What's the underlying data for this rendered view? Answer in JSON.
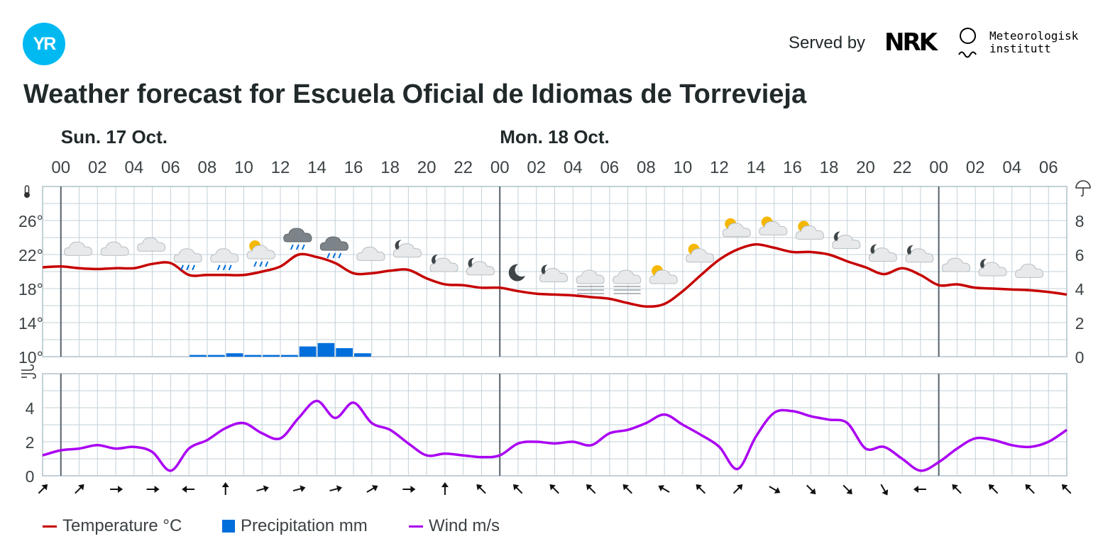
{
  "header": {
    "logo_text": "YR",
    "served_by": "Served by",
    "nrk_text": "NRK",
    "met_line1": "Meteorologisk",
    "met_line2": "institutt"
  },
  "title": "Weather forecast for Escuela Oficial de Idiomas de Torrevieja",
  "colors": {
    "temperature": "#c60000",
    "precipitation": "#006edb",
    "wind": "#aa00f2",
    "grid": "#c3d0d8",
    "day_separator": "#56616c",
    "axis_text": "#3b4245",
    "logo": "#00b9f1"
  },
  "legend": [
    {
      "label": "Temperature °C",
      "kind": "line",
      "color": "#c60000"
    },
    {
      "label": "Precipitation mm",
      "kind": "box",
      "color": "#006edb"
    },
    {
      "label": "Wind m/s",
      "kind": "line",
      "color": "#aa00f2"
    }
  ],
  "chart_data": {
    "type": "line",
    "x_unit": "hours from Sun. 17 Oct. 00:00",
    "days": [
      {
        "label": "Sun. 17 Oct.",
        "start_hour": 0
      },
      {
        "label": "Mon. 18 Oct.",
        "start_hour": 24
      }
    ],
    "hour_tick_labels": [
      "00",
      "02",
      "04",
      "06",
      "08",
      "10",
      "12",
      "14",
      "16",
      "18",
      "20",
      "22",
      "00",
      "02",
      "04",
      "06",
      "08",
      "10",
      "12",
      "14",
      "16",
      "18",
      "20",
      "22",
      "00",
      "02",
      "04",
      "06"
    ],
    "x_range": [
      -1,
      55
    ],
    "temperature": {
      "name": "Temperature °C",
      "ylim": [
        10,
        30
      ],
      "yticks": [
        "10°",
        "14°",
        "18°",
        "22°",
        "26°"
      ],
      "points": [
        [
          -1,
          20.5
        ],
        [
          0,
          20.6
        ],
        [
          1,
          20.4
        ],
        [
          2,
          20.3
        ],
        [
          3,
          20.4
        ],
        [
          4,
          20.4
        ],
        [
          5,
          20.9
        ],
        [
          6,
          21.0
        ],
        [
          7,
          19.6
        ],
        [
          8,
          19.6
        ],
        [
          9,
          19.6
        ],
        [
          10,
          19.6
        ],
        [
          11,
          20.0
        ],
        [
          12,
          20.6
        ],
        [
          13,
          22.0
        ],
        [
          14,
          21.7
        ],
        [
          15,
          21.0
        ],
        [
          16,
          19.8
        ],
        [
          17,
          19.8
        ],
        [
          18,
          20.1
        ],
        [
          19,
          20.2
        ],
        [
          20,
          19.2
        ],
        [
          21,
          18.5
        ],
        [
          22,
          18.4
        ],
        [
          23,
          18.1
        ],
        [
          24,
          18.1
        ],
        [
          25,
          17.7
        ],
        [
          26,
          17.4
        ],
        [
          27,
          17.3
        ],
        [
          28,
          17.2
        ],
        [
          29,
          17.0
        ],
        [
          30,
          16.8
        ],
        [
          31,
          16.3
        ],
        [
          32,
          15.9
        ],
        [
          33,
          16.2
        ],
        [
          34,
          17.7
        ],
        [
          35,
          19.6
        ],
        [
          36,
          21.4
        ],
        [
          37,
          22.6
        ],
        [
          38,
          23.2
        ],
        [
          39,
          22.8
        ],
        [
          40,
          22.3
        ],
        [
          41,
          22.3
        ],
        [
          42,
          22.0
        ],
        [
          43,
          21.2
        ],
        [
          44,
          20.5
        ],
        [
          45,
          19.7
        ],
        [
          46,
          20.4
        ],
        [
          47,
          19.6
        ],
        [
          48,
          18.4
        ],
        [
          49,
          18.5
        ],
        [
          50,
          18.1
        ],
        [
          51,
          18.0
        ],
        [
          52,
          17.9
        ],
        [
          53,
          17.8
        ],
        [
          54,
          17.6
        ],
        [
          55,
          17.3
        ]
      ]
    },
    "precipitation": {
      "name": "Precipitation mm",
      "ylim": [
        0,
        10
      ],
      "yticks": [
        "0",
        "2",
        "4",
        "6",
        "8"
      ],
      "bars": [
        [
          7,
          0.1
        ],
        [
          8,
          0.1
        ],
        [
          9,
          0.2
        ],
        [
          10,
          0.1
        ],
        [
          11,
          0.1
        ],
        [
          12,
          0.1
        ],
        [
          13,
          0.6
        ],
        [
          14,
          0.8
        ],
        [
          15,
          0.5
        ],
        [
          16,
          0.2
        ]
      ]
    },
    "wind": {
      "name": "Wind m/s",
      "ylim": [
        0,
        6
      ],
      "yticks": [
        "0",
        "2",
        "4"
      ],
      "points": [
        [
          -1,
          1.2
        ],
        [
          0,
          1.5
        ],
        [
          1,
          1.6
        ],
        [
          2,
          1.8
        ],
        [
          3,
          1.6
        ],
        [
          4,
          1.7
        ],
        [
          5,
          1.4
        ],
        [
          6,
          0.3
        ],
        [
          7,
          1.6
        ],
        [
          8,
          2.1
        ],
        [
          9,
          2.8
        ],
        [
          10,
          3.1
        ],
        [
          11,
          2.5
        ],
        [
          12,
          2.2
        ],
        [
          13,
          3.4
        ],
        [
          14,
          4.4
        ],
        [
          15,
          3.4
        ],
        [
          16,
          4.3
        ],
        [
          17,
          3.1
        ],
        [
          18,
          2.7
        ],
        [
          19,
          1.9
        ],
        [
          20,
          1.2
        ],
        [
          21,
          1.3
        ],
        [
          22,
          1.2
        ],
        [
          23,
          1.1
        ],
        [
          24,
          1.2
        ],
        [
          25,
          1.9
        ],
        [
          26,
          2.0
        ],
        [
          27,
          1.9
        ],
        [
          28,
          2.0
        ],
        [
          29,
          1.8
        ],
        [
          30,
          2.5
        ],
        [
          31,
          2.7
        ],
        [
          32,
          3.1
        ],
        [
          33,
          3.6
        ],
        [
          34,
          3.0
        ],
        [
          35,
          2.4
        ],
        [
          36,
          1.7
        ],
        [
          37,
          0.4
        ],
        [
          38,
          2.3
        ],
        [
          39,
          3.7
        ],
        [
          40,
          3.8
        ],
        [
          41,
          3.5
        ],
        [
          42,
          3.3
        ],
        [
          43,
          3.1
        ],
        [
          44,
          1.6
        ],
        [
          45,
          1.7
        ],
        [
          46,
          1.0
        ],
        [
          47,
          0.3
        ],
        [
          48,
          0.8
        ],
        [
          49,
          1.6
        ],
        [
          50,
          2.2
        ],
        [
          51,
          2.1
        ],
        [
          52,
          1.8
        ],
        [
          53,
          1.7
        ],
        [
          54,
          2.0
        ],
        [
          55,
          2.7
        ]
      ]
    },
    "wind_direction_arrows": [
      {
        "hour": -1,
        "rot": 225
      },
      {
        "hour": 1,
        "rot": 225
      },
      {
        "hour": 3,
        "rot": 270
      },
      {
        "hour": 5,
        "rot": 270
      },
      {
        "hour": 7,
        "rot": 90
      },
      {
        "hour": 9,
        "rot": 180
      },
      {
        "hour": 11,
        "rot": 255
      },
      {
        "hour": 13,
        "rot": 255
      },
      {
        "hour": 15,
        "rot": 255
      },
      {
        "hour": 17,
        "rot": 240
      },
      {
        "hour": 19,
        "rot": 270
      },
      {
        "hour": 21,
        "rot": 180
      },
      {
        "hour": 23,
        "rot": 135
      },
      {
        "hour": 25,
        "rot": 135
      },
      {
        "hour": 27,
        "rot": 135
      },
      {
        "hour": 29,
        "rot": 135
      },
      {
        "hour": 31,
        "rot": 135
      },
      {
        "hour": 33,
        "rot": 120
      },
      {
        "hour": 35,
        "rot": 135
      },
      {
        "hour": 37,
        "rot": 225
      },
      {
        "hour": 39,
        "rot": 300
      },
      {
        "hour": 41,
        "rot": 315
      },
      {
        "hour": 43,
        "rot": 315
      },
      {
        "hour": 45,
        "rot": 330
      },
      {
        "hour": 47,
        "rot": 90
      },
      {
        "hour": 49,
        "rot": 135
      },
      {
        "hour": 51,
        "rot": 135
      },
      {
        "hour": 53,
        "rot": 135
      },
      {
        "hour": 55,
        "rot": 135
      }
    ],
    "weather_symbols": [
      {
        "hour": 1,
        "icon": "cloudy-icon"
      },
      {
        "hour": 3,
        "icon": "cloudy-icon"
      },
      {
        "hour": 5,
        "icon": "cloudy-icon"
      },
      {
        "hour": 7,
        "icon": "rain-cloud-icon"
      },
      {
        "hour": 9,
        "icon": "rain-cloud-icon"
      },
      {
        "hour": 11,
        "icon": "sun-rain-cloud-icon"
      },
      {
        "hour": 13,
        "icon": "dark-rain-cloud-icon"
      },
      {
        "hour": 15,
        "icon": "dark-rain-cloud-icon"
      },
      {
        "hour": 17,
        "icon": "cloudy-icon"
      },
      {
        "hour": 19,
        "icon": "moon-cloud-icon"
      },
      {
        "hour": 21,
        "icon": "moon-cloud-icon"
      },
      {
        "hour": 23,
        "icon": "moon-cloud-icon"
      },
      {
        "hour": 25,
        "icon": "moon-icon"
      },
      {
        "hour": 27,
        "icon": "moon-cloud-icon"
      },
      {
        "hour": 29,
        "icon": "fog-icon"
      },
      {
        "hour": 31,
        "icon": "fog-icon"
      },
      {
        "hour": 33,
        "icon": "sun-cloud-icon"
      },
      {
        "hour": 35,
        "icon": "sun-cloud-icon"
      },
      {
        "hour": 37,
        "icon": "sun-cloud-icon"
      },
      {
        "hour": 39,
        "icon": "sun-cloud-icon"
      },
      {
        "hour": 41,
        "icon": "sun-cloud-icon"
      },
      {
        "hour": 43,
        "icon": "moon-cloud-icon"
      },
      {
        "hour": 45,
        "icon": "moon-cloud-icon"
      },
      {
        "hour": 47,
        "icon": "moon-cloud-icon"
      },
      {
        "hour": 49,
        "icon": "cloudy-icon"
      },
      {
        "hour": 51,
        "icon": "moon-cloud-icon"
      },
      {
        "hour": 53,
        "icon": "cloudy-icon"
      }
    ]
  }
}
